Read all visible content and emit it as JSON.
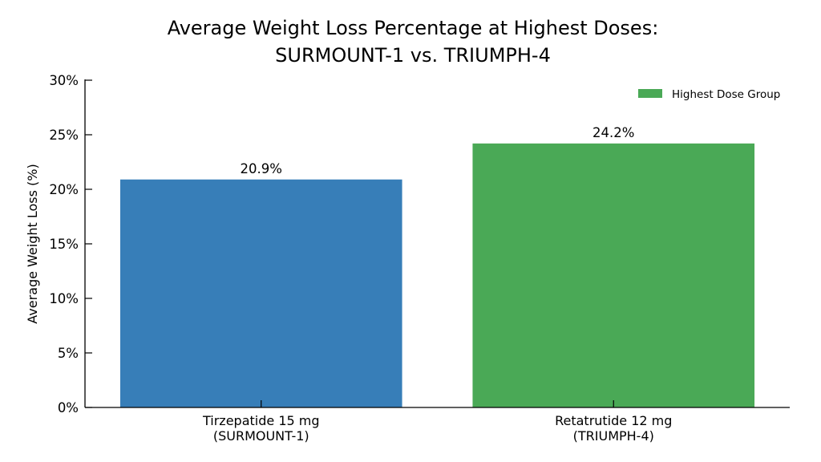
{
  "chart_data": {
    "type": "bar",
    "title_lines": [
      "Average Weight Loss Percentage at Highest Doses:",
      "SURMOUNT-1 vs. TRIUMPH-4"
    ],
    "xlabel": "",
    "ylabel": "Average Weight Loss (%)",
    "ylim": [
      0,
      30
    ],
    "yticks": [
      0,
      5,
      10,
      15,
      20,
      25,
      30
    ],
    "ytick_labels": [
      "0%",
      "5%",
      "10%",
      "15%",
      "20%",
      "25%",
      "30%"
    ],
    "categories": [
      [
        "Tirzepatide 15 mg",
        "(SURMOUNT-1)"
      ],
      [
        "Retatrutide 12 mg",
        "(TRIUMPH-4)"
      ]
    ],
    "values": [
      20.9,
      24.2
    ],
    "data_labels": [
      "20.9%",
      "24.2%"
    ],
    "bar_colors": [
      "#377eb8",
      "#4aa956"
    ],
    "legend": {
      "label": "Highest Dose Group",
      "color": "#4aa956",
      "placement": "top-right"
    },
    "grid": false
  }
}
